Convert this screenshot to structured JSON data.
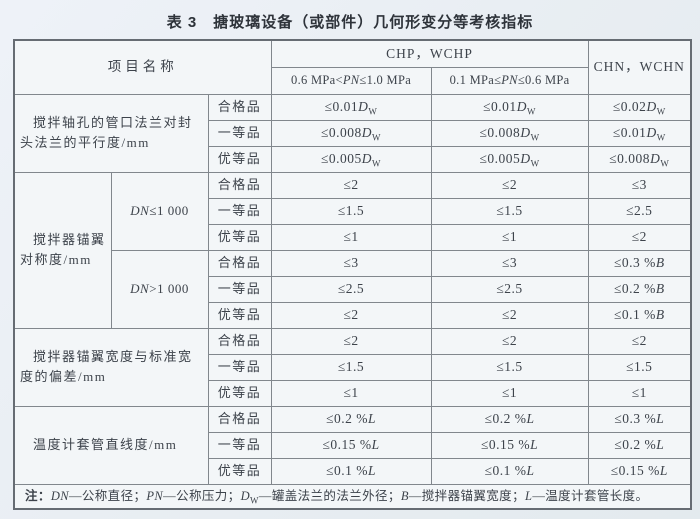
{
  "page": {
    "title": "表 3　搪玻璃设备（或部件）几何形变分等考核指标"
  },
  "colors": {
    "page_bg": "#e9eef3",
    "table_bg": "#f3f6f8",
    "border": "#81878d",
    "text": "#3d434b"
  },
  "table": {
    "header": {
      "project_label": "项目名称",
      "chp_group": "CHP，WCHP",
      "chn_group": "CHN，WCHN",
      "pn_range_high": "0.6 MPa<_PN_≤1.0 MPa",
      "pn_range_low": "0.1 MPa≤_PN_≤0.6 MPa"
    },
    "sections": [
      {
        "name": "搅拌轴孔的管口法兰对封头法兰的平行度/mm",
        "rows": [
          {
            "grade": "合格品",
            "values": [
              "≤0.01_D_~W~",
              "≤0.01_D_~W~",
              "≤0.02_D_~W~"
            ]
          },
          {
            "grade": "一等品",
            "values": [
              "≤0.008_D_~W~",
              "≤0.008_D_~W~",
              "≤0.01_D_~W~"
            ]
          },
          {
            "grade": "优等品",
            "values": [
              "≤0.005_D_~W~",
              "≤0.005_D_~W~",
              "≤0.008_D_~W~"
            ]
          }
        ]
      },
      {
        "name": "搅拌器锚翼对称度/mm",
        "subgroups": [
          {
            "condition": "_DN_≤1 000",
            "rows": [
              {
                "grade": "合格品",
                "values": [
                  "≤2",
                  "≤2",
                  "≤3"
                ]
              },
              {
                "grade": "一等品",
                "values": [
                  "≤1.5",
                  "≤1.5",
                  "≤2.5"
                ]
              },
              {
                "grade": "优等品",
                "values": [
                  "≤1",
                  "≤1",
                  "≤2"
                ]
              }
            ]
          },
          {
            "condition": "_DN_>1 000",
            "rows": [
              {
                "grade": "合格品",
                "values": [
                  "≤3",
                  "≤3",
                  "≤0.3 %_B_"
                ]
              },
              {
                "grade": "一等品",
                "values": [
                  "≤2.5",
                  "≤2.5",
                  "≤0.2 %_B_"
                ]
              },
              {
                "grade": "优等品",
                "values": [
                  "≤2",
                  "≤2",
                  "≤0.1 %_B_"
                ]
              }
            ]
          }
        ]
      },
      {
        "name": "搅拌器锚翼宽度与标准宽度的偏差/mm",
        "rows": [
          {
            "grade": "合格品",
            "values": [
              "≤2",
              "≤2",
              "≤2"
            ]
          },
          {
            "grade": "一等品",
            "values": [
              "≤1.5",
              "≤1.5",
              "≤1.5"
            ]
          },
          {
            "grade": "优等品",
            "values": [
              "≤1",
              "≤1",
              "≤1"
            ]
          }
        ]
      },
      {
        "name": "温度计套管直线度/mm",
        "rows": [
          {
            "grade": "合格品",
            "values": [
              "≤0.2 %_L_",
              "≤0.2 %_L_",
              "≤0.3 %_L_"
            ]
          },
          {
            "grade": "一等品",
            "values": [
              "≤0.15 %_L_",
              "≤0.15 %_L_",
              "≤0.2 %_L_"
            ]
          },
          {
            "grade": "优等品",
            "values": [
              "≤0.1 %_L_",
              "≤0.1 %_L_",
              "≤0.15 %_L_"
            ]
          }
        ]
      }
    ],
    "note": "*注：*_DN_—公称直径；_PN_—公称压力；_D_~W~—罐盖法兰的法兰外径；_B_—搅拌器锚翼宽度；_L_—温度计套管长度。"
  }
}
